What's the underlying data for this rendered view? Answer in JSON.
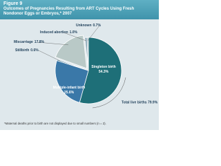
{
  "chart_data": {
    "type": "pie",
    "figure": "Figure 9",
    "title": "Outcomes of Pregnancies Resulting from ART Cycles Using Fresh Nondonor Eggs or Embryos,* 2007",
    "categories": [
      "Singleton birth",
      "Multiple-infant birth",
      "Stillbirth",
      "Miscarriage",
      "Induced abortion",
      "Unknown"
    ],
    "values": [
      54.3,
      25.6,
      0.6,
      17.8,
      1.0,
      0.7
    ],
    "value_labels": [
      "54.3%",
      "25.6%",
      "0.6%",
      "17.8%",
      "1.0%",
      "0.7%"
    ],
    "colors": [
      "#1e6f78",
      "#3a78a8",
      "#5f8ea3",
      "#b9c9c7",
      "#7f9fb0",
      "#9fb3bd"
    ],
    "annotation": "Total live births 79.9%",
    "footnote": "*Maternal deaths prior to birth are not displayed due to small numbers (n = 2)."
  }
}
